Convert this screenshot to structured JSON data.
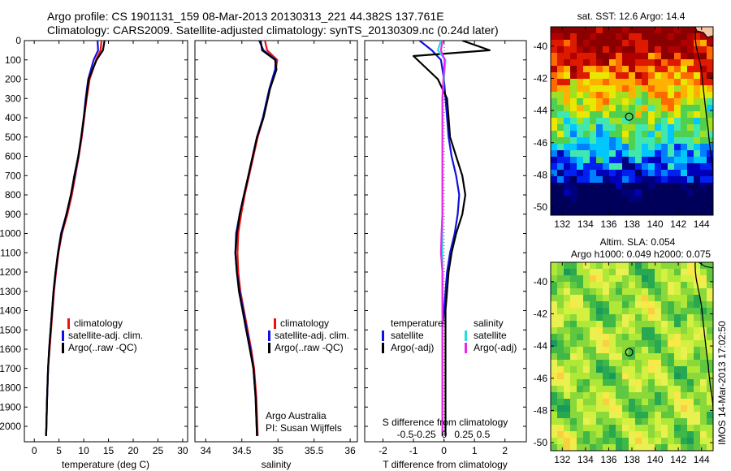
{
  "header": {
    "line1": "Argo profile: CS 1901131_159 08-Mar-2013 20130313_221 44.382S 137.761E",
    "line2": "Climatology: CARS2009. Satellite-adjusted climatology: synTS_20130309.nc (0.24d later)"
  },
  "colors": {
    "climatology": "#ee1111",
    "satellite": "#1111dd",
    "argo": "#000000",
    "salinity_satellite": "#22dddd",
    "salinity_argo": "#ee22ee"
  },
  "chart_data": [
    {
      "type": "line",
      "name": "temperature-profile",
      "xlabel": "temperature (deg C)",
      "ylabel": "",
      "xlim": [
        -2,
        31
      ],
      "ylim": [
        2080,
        0
      ],
      "xticks": [
        0,
        5,
        10,
        15,
        20,
        25,
        30
      ],
      "yticks": [
        0,
        100,
        200,
        300,
        400,
        500,
        600,
        700,
        800,
        900,
        1000,
        1100,
        1200,
        1300,
        1400,
        1500,
        1600,
        1700,
        1800,
        1900,
        2000
      ],
      "legend": [
        "climatology",
        "satellite-adj. clim.",
        "Argo(..raw -QC)"
      ],
      "legend_location": "lower-right",
      "series": [
        {
          "name": "climatology",
          "color": "#ee1111",
          "x": [
            13.6,
            13.4,
            12.5,
            11.2,
            10.6,
            10.1,
            9.6,
            9.0,
            8.3,
            7.6,
            6.7,
            5.6,
            4.9,
            4.4,
            4.0,
            3.7,
            3.4,
            3.1,
            2.8,
            2.6,
            2.4
          ],
          "y": [
            0,
            50,
            100,
            200,
            300,
            400,
            500,
            600,
            700,
            800,
            900,
            1000,
            1100,
            1200,
            1300,
            1400,
            1500,
            1600,
            1700,
            1850,
            2050
          ]
        },
        {
          "name": "satellite-adj. clim.",
          "color": "#1111dd",
          "x": [
            12.8,
            12.9,
            12.0,
            10.9,
            10.4,
            10.0,
            9.5,
            8.9,
            8.2,
            7.4,
            6.5,
            5.4,
            4.8,
            4.3,
            3.9,
            3.6,
            3.3,
            3.0,
            2.8,
            2.6,
            2.4
          ],
          "y": [
            0,
            50,
            100,
            200,
            300,
            400,
            500,
            600,
            700,
            800,
            900,
            1000,
            1100,
            1200,
            1300,
            1400,
            1500,
            1600,
            1700,
            1850,
            2050
          ]
        },
        {
          "name": "Argo(..raw -QC)",
          "color": "#000000",
          "x": [
            14.2,
            13.9,
            12.6,
            11.0,
            10.5,
            10.0,
            9.5,
            8.9,
            8.1,
            7.4,
            6.5,
            5.5,
            4.8,
            4.3,
            3.9,
            3.6,
            3.3,
            3.0,
            2.8,
            2.6,
            2.4
          ],
          "y": [
            0,
            50,
            100,
            200,
            300,
            400,
            500,
            600,
            700,
            800,
            900,
            1000,
            1100,
            1200,
            1300,
            1400,
            1500,
            1600,
            1700,
            1850,
            2050
          ]
        }
      ]
    },
    {
      "type": "line",
      "name": "salinity-profile",
      "xlabel": "salinity",
      "ylabel": "",
      "xlim": [
        33.85,
        36.1
      ],
      "ylim": [
        2080,
        0
      ],
      "xticks": [
        34,
        34.5,
        35,
        35.5,
        36
      ],
      "xtick_labels": [
        "34",
        "34.5",
        "35",
        "35.5",
        "36"
      ],
      "legend": [
        "climatology",
        "satellite-adj. clim.",
        "Argo(..raw -QC)"
      ],
      "legend_location": "right",
      "annotation": [
        "Argo Australia",
        "PI: Susan Wijffels"
      ],
      "series": [
        {
          "name": "climatology",
          "color": "#ee1111",
          "x": [
            34.82,
            34.85,
            34.99,
            34.97,
            34.89,
            34.8,
            34.72,
            34.66,
            34.6,
            34.54,
            34.49,
            34.45,
            34.44,
            34.45,
            34.48,
            34.53,
            34.58,
            34.63,
            34.67,
            34.7,
            34.72
          ],
          "y": [
            0,
            50,
            100,
            150,
            250,
            400,
            500,
            600,
            700,
            800,
            900,
            1000,
            1100,
            1200,
            1300,
            1400,
            1500,
            1600,
            1700,
            1850,
            2050
          ]
        },
        {
          "name": "satellite-adj. clim.",
          "color": "#1111dd",
          "x": [
            34.74,
            34.8,
            34.97,
            34.96,
            34.88,
            34.79,
            34.71,
            34.65,
            34.59,
            34.53,
            34.47,
            34.42,
            34.41,
            34.43,
            34.47,
            34.52,
            34.57,
            34.62,
            34.66,
            34.69,
            34.71
          ],
          "y": [
            0,
            50,
            100,
            150,
            250,
            400,
            500,
            600,
            700,
            800,
            900,
            1000,
            1100,
            1200,
            1300,
            1400,
            1500,
            1600,
            1700,
            1850,
            2050
          ]
        },
        {
          "name": "Argo(..raw -QC)",
          "color": "#000000",
          "x": [
            34.76,
            34.78,
            34.96,
            34.98,
            34.89,
            34.8,
            34.71,
            34.65,
            34.59,
            34.53,
            34.47,
            34.43,
            34.41,
            34.43,
            34.46,
            34.51,
            34.56,
            34.61,
            34.66,
            34.69,
            34.71
          ],
          "y": [
            0,
            50,
            100,
            150,
            250,
            400,
            500,
            600,
            700,
            800,
            900,
            1000,
            1100,
            1200,
            1300,
            1400,
            1500,
            1600,
            1700,
            1850,
            2050
          ]
        }
      ]
    },
    {
      "type": "line",
      "name": "difference-profile",
      "xlabel": "T difference from climatology",
      "xlabel_top": "S difference from climatology",
      "xlim": [
        -2.6,
        2.7
      ],
      "ylim": [
        2080,
        0
      ],
      "xticks": [
        -2,
        -1,
        0,
        1,
        2
      ],
      "xtick_labels": [
        "-2",
        "-1",
        "0",
        "1",
        "2"
      ],
      "sticks": [
        -0.5,
        -0.25,
        0,
        0.25,
        0.5
      ],
      "stick_labels": [
        "-0.5",
        "-0.25",
        "0",
        "0.25",
        "0.5"
      ],
      "legend_temperature": [
        "temperature",
        "satellite",
        "Argo(-adj)"
      ],
      "legend_salinity": [
        "salinity",
        "satellite",
        "Argo(-adj)"
      ],
      "series": [
        {
          "name": "temperature satellite",
          "color": "#1111dd",
          "x": [
            -0.8,
            -0.4,
            -0.1,
            0,
            0.05,
            0.1,
            0.15,
            0.25,
            0.4,
            0.5,
            0.45,
            0.35,
            0.2,
            0.1,
            0.05,
            0,
            -0.05,
            -0.05,
            -0.05,
            -0.05,
            -0.05
          ],
          "y": [
            0,
            50,
            100,
            200,
            300,
            400,
            500,
            600,
            700,
            800,
            900,
            1000,
            1100,
            1200,
            1300,
            1400,
            1500,
            1600,
            1700,
            1850,
            2050
          ]
        },
        {
          "name": "temperature Argo(-adj)",
          "color": "#000000",
          "x": [
            0.6,
            1.5,
            -1.0,
            -0.2,
            0.1,
            0.15,
            0.2,
            0.4,
            0.6,
            0.7,
            0.6,
            0.4,
            0.25,
            0.15,
            0.1,
            0.05,
            0.05,
            0.05,
            0.05,
            0.05,
            0.05
          ],
          "y": [
            0,
            50,
            80,
            200,
            300,
            400,
            500,
            600,
            700,
            800,
            900,
            1000,
            1100,
            1200,
            1300,
            1400,
            1500,
            1600,
            1700,
            1850,
            2050
          ]
        },
        {
          "name": "salinity satellite",
          "color": "#22dddd",
          "x": [
            -0.1,
            -0.2,
            0.05,
            0,
            -0.05,
            -0.05,
            -0.05,
            -0.05,
            -0.05,
            -0.05,
            -0.05,
            -0.05,
            -0.05,
            -0.05,
            -0.05,
            -0.05,
            -0.05,
            -0.05,
            -0.05,
            -0.05,
            -0.05
          ],
          "y": [
            0,
            50,
            100,
            200,
            300,
            400,
            500,
            600,
            700,
            800,
            900,
            1000,
            1100,
            1200,
            1300,
            1400,
            1500,
            1600,
            1700,
            1850,
            2050
          ]
        },
        {
          "name": "salinity Argo(-adj)",
          "color": "#ee22ee",
          "x": [
            -0.05,
            -0.1,
            0.02,
            -0.02,
            -0.05,
            -0.05,
            -0.05,
            -0.05,
            -0.05,
            -0.05,
            -0.05,
            -0.08,
            -0.1,
            -0.05,
            -0.05,
            -0.05,
            -0.05,
            -0.05,
            -0.05,
            -0.05,
            -0.05
          ],
          "y": [
            0,
            50,
            100,
            200,
            300,
            400,
            500,
            600,
            700,
            800,
            900,
            1000,
            1100,
            1200,
            1300,
            1400,
            1500,
            1600,
            1700,
            1850,
            2050
          ]
        }
      ]
    },
    {
      "type": "heatmap",
      "name": "sst-map",
      "title": "sat. SST: 12.6  Argo: 14.4",
      "xlim": [
        131,
        145
      ],
      "ylim": [
        -50.5,
        -38.8
      ],
      "xticks": [
        132,
        134,
        136,
        138,
        140,
        142,
        144
      ],
      "yticks": [
        -40,
        -42,
        -44,
        -46,
        -48,
        -50
      ],
      "marker": {
        "lon": 137.761,
        "lat": -44.382
      }
    },
    {
      "type": "heatmap",
      "name": "sla-map",
      "title_lines": [
        "Altim. SLA: 0.054",
        "Argo h1000: 0.049 h2000: 0.075"
      ],
      "xlim": [
        131,
        145
      ],
      "ylim": [
        -50.5,
        -38.8
      ],
      "xticks": [
        132,
        134,
        136,
        138,
        140,
        142,
        144
      ],
      "yticks": [
        -40,
        -42,
        -44,
        -46,
        -48,
        -50
      ],
      "marker": {
        "lon": 137.761,
        "lat": -44.382
      }
    }
  ],
  "side_stamp": "IMOS 14-Mar-2013 17:02:50"
}
